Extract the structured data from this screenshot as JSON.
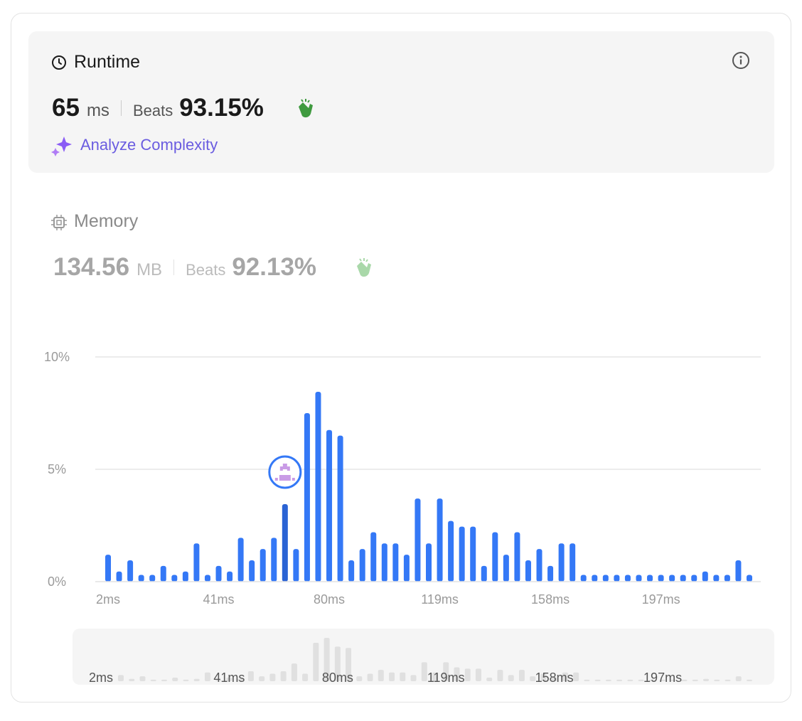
{
  "runtime": {
    "title": "Runtime",
    "value": "65",
    "unit": "ms",
    "beats_label": "Beats",
    "beats": "93.15%",
    "analyze": "Analyze Complexity"
  },
  "memory": {
    "title": "Memory",
    "value": "134.56",
    "unit": "MB",
    "beats_label": "Beats",
    "beats": "92.13%"
  },
  "chart_data": {
    "type": "bar",
    "color": "#3478f6",
    "highlight_color": "#2a63d4",
    "highlight": 16,
    "categories": [
      "2ms",
      null,
      null,
      null,
      null,
      null,
      null,
      null,
      null,
      null,
      "41ms",
      null,
      null,
      null,
      null,
      null,
      null,
      null,
      null,
      null,
      "80ms",
      null,
      null,
      null,
      null,
      null,
      null,
      null,
      null,
      null,
      "119ms",
      null,
      null,
      null,
      null,
      null,
      null,
      null,
      null,
      null,
      "158ms",
      null,
      null,
      null,
      null,
      null,
      null,
      null,
      null,
      null,
      "197ms",
      null,
      null,
      null,
      null,
      null,
      null,
      null,
      null
    ],
    "values": [
      1.2,
      0.45,
      0.95,
      0.3,
      0.3,
      0.7,
      0.3,
      0.45,
      1.7,
      0.3,
      0.7,
      0.45,
      1.95,
      0.95,
      1.45,
      1.95,
      3.45,
      1.45,
      7.5,
      8.45,
      6.75,
      6.5,
      0.95,
      1.45,
      2.2,
      1.7,
      1.7,
      1.2,
      3.7,
      1.7,
      3.7,
      2.7,
      2.45,
      2.45,
      0.7,
      2.2,
      1.2,
      2.2,
      0.95,
      1.45,
      0.7,
      1.7,
      1.7,
      0.3,
      0.3,
      0.3,
      0.3,
      0.3,
      0.3,
      0.3,
      0.3,
      0.3,
      0.3,
      0.3,
      0.45,
      0.3,
      0.3,
      0.95,
      0.3
    ],
    "ylim": [
      0,
      10
    ],
    "yticks": [
      {
        "value": 0,
        "label": "0%"
      },
      {
        "value": 5,
        "label": "5%"
      },
      {
        "value": 10,
        "label": "10%"
      }
    ],
    "grid": true
  }
}
